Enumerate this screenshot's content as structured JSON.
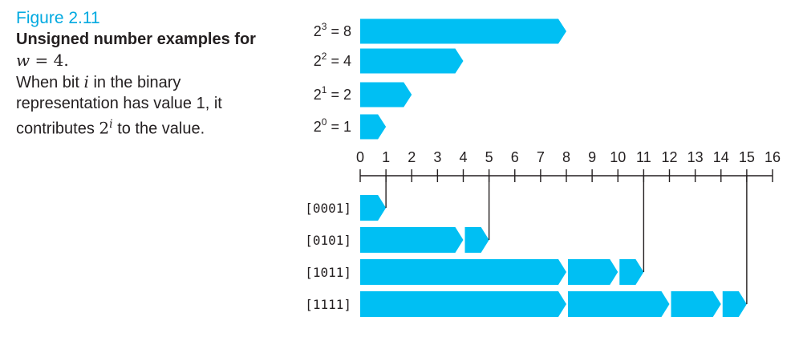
{
  "caption": {
    "figure_label": "Figure 2.11",
    "title_text": "Unsigned number examples for",
    "title_var": "w",
    "title_eq": " = 4.",
    "body_1": "When bit",
    "body_var": "i",
    "body_2": "in the binary representation has value 1, it contributes",
    "body_base": "2",
    "body_exp": "i",
    "body_3": "to the value."
  },
  "powers": [
    {
      "base": "2",
      "exp": "3",
      "eq": " = 8",
      "value": 8
    },
    {
      "base": "2",
      "exp": "2",
      "eq": " = 4",
      "value": 4
    },
    {
      "base": "2",
      "exp": "1",
      "eq": " = 2",
      "value": 2
    },
    {
      "base": "2",
      "exp": "0",
      "eq": " = 1",
      "value": 1
    }
  ],
  "axis": {
    "min": 0,
    "max": 16,
    "ticks": [
      "0",
      "1",
      "2",
      "3",
      "4",
      "5",
      "6",
      "7",
      "8",
      "9",
      "10",
      "11",
      "12",
      "13",
      "14",
      "15",
      "16"
    ]
  },
  "examples": [
    {
      "label": "[0001]",
      "segments": [
        1
      ],
      "total": 1
    },
    {
      "label": "[0101]",
      "segments": [
        4,
        1
      ],
      "total": 5
    },
    {
      "label": "[1011]",
      "segments": [
        8,
        2,
        1
      ],
      "total": 11
    },
    {
      "label": "[1111]",
      "segments": [
        8,
        4,
        2,
        1
      ],
      "total": 15
    }
  ],
  "colors": {
    "bar": "#00bff3",
    "figure_label": "#00a9e0"
  }
}
